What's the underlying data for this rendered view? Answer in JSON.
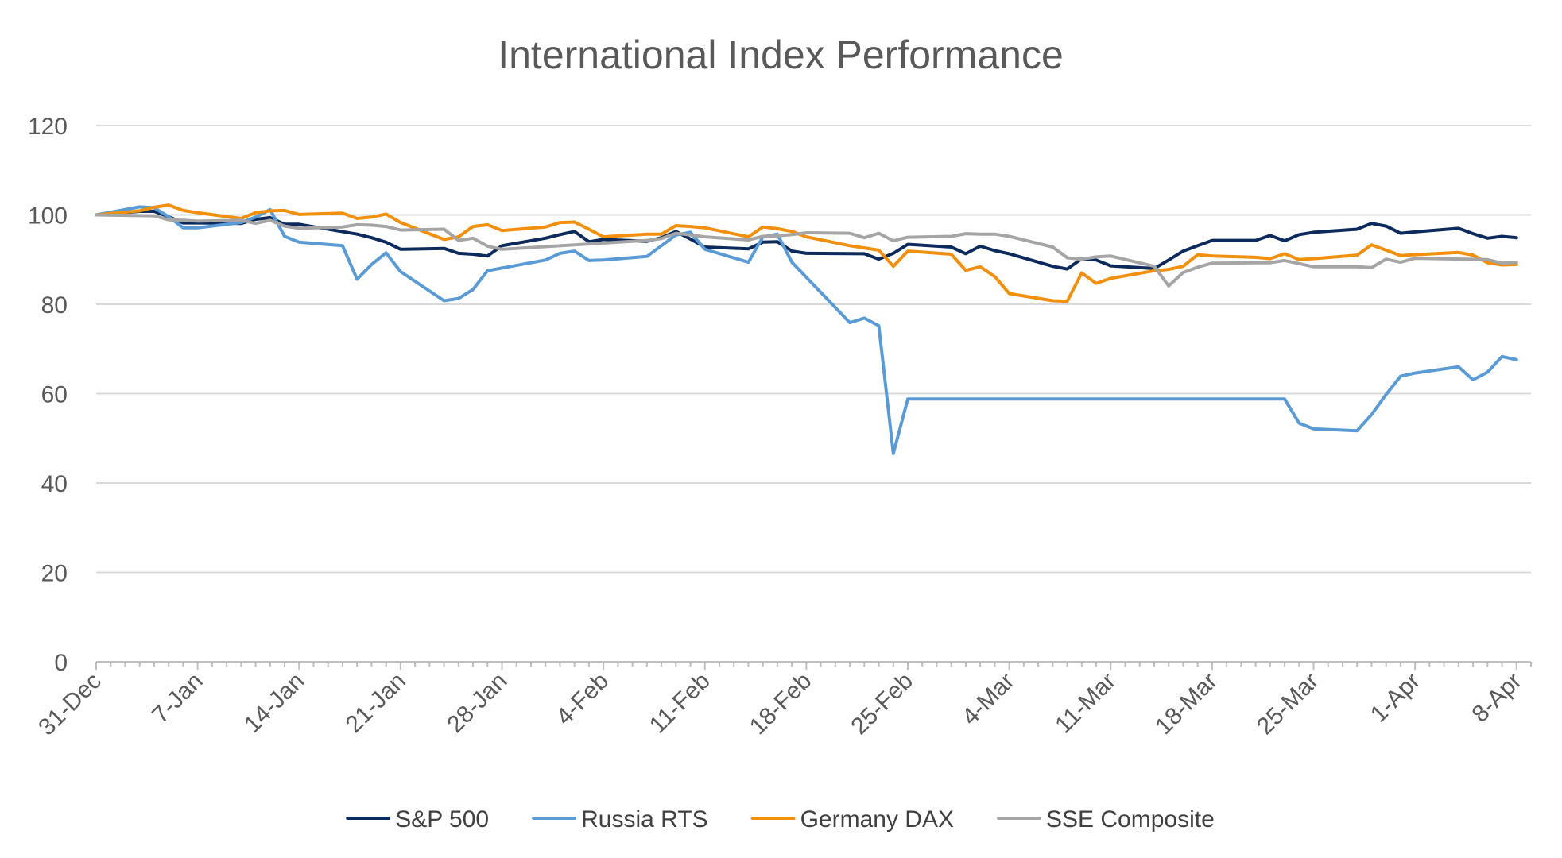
{
  "chart_data": {
    "type": "line",
    "title": "International Index Performance",
    "xlabel": "",
    "ylabel": "",
    "ylim": [
      0,
      120
    ],
    "y_ticks": [
      0,
      20,
      40,
      60,
      80,
      100,
      120
    ],
    "grid": true,
    "legend_position": "bottom",
    "x_range": [
      "31-Dec",
      "9-Apr"
    ],
    "x_tick_labels": [
      "31-Dec",
      "7-Jan",
      "14-Jan",
      "21-Jan",
      "28-Jan",
      "4-Feb",
      "11-Feb",
      "18-Feb",
      "25-Feb",
      "4-Mar",
      "11-Mar",
      "18-Mar",
      "25-Mar",
      "1-Apr",
      "8-Apr"
    ],
    "series": [
      {
        "name": "S&P 500",
        "color": "#0d2a5c",
        "points": [
          [
            "31-Dec",
            100
          ],
          [
            "3-Jan",
            100.8
          ],
          [
            "4-Jan",
            100.8
          ],
          [
            "5-Jan",
            99.6
          ],
          [
            "6-Jan",
            98.2
          ],
          [
            "7-Jan",
            98.2
          ],
          [
            "10-Jan",
            98.1
          ],
          [
            "11-Jan",
            99
          ],
          [
            "12-Jan",
            99.4
          ],
          [
            "13-Jan",
            97.9
          ],
          [
            "14-Jan",
            97.9
          ],
          [
            "18-Jan",
            95.7
          ],
          [
            "19-Jan",
            94.9
          ],
          [
            "20-Jan",
            93.9
          ],
          [
            "21-Jan",
            92.3
          ],
          [
            "24-Jan",
            92.5
          ],
          [
            "25-Jan",
            91.4
          ],
          [
            "26-Jan",
            91.2
          ],
          [
            "27-Jan",
            90.8
          ],
          [
            "28-Jan",
            93.1
          ],
          [
            "31-Jan",
            94.8
          ],
          [
            "1-Feb",
            95.6
          ],
          [
            "2-Feb",
            96.3
          ],
          [
            "3-Feb",
            94
          ],
          [
            "4-Feb",
            94.5
          ],
          [
            "7-Feb",
            94.1
          ],
          [
            "8-Feb",
            94.9
          ],
          [
            "9-Feb",
            96.3
          ],
          [
            "10-Feb",
            94.6
          ],
          [
            "11-Feb",
            92.8
          ],
          [
            "14-Feb",
            92.4
          ],
          [
            "15-Feb",
            93.9
          ],
          [
            "16-Feb",
            94
          ],
          [
            "17-Feb",
            91.9
          ],
          [
            "18-Feb",
            91.4
          ],
          [
            "22-Feb",
            91.3
          ],
          [
            "23-Feb",
            90.1
          ],
          [
            "24-Feb",
            91.4
          ],
          [
            "25-Feb",
            93.4
          ],
          [
            "28-Feb",
            92.8
          ],
          [
            "1-Mar",
            91.3
          ],
          [
            "2-Mar",
            93
          ],
          [
            "3-Mar",
            92
          ],
          [
            "4-Mar",
            91.3
          ],
          [
            "7-Mar",
            88.5
          ],
          [
            "8-Mar",
            87.9
          ],
          [
            "9-Mar",
            90.2
          ],
          [
            "10-Mar",
            89.9
          ],
          [
            "11-Mar",
            88.6
          ],
          [
            "14-Mar",
            88
          ],
          [
            "15-Mar",
            89.9
          ],
          [
            "16-Mar",
            91.9
          ],
          [
            "17-Mar",
            93.1
          ],
          [
            "18-Mar",
            94.3
          ],
          [
            "21-Mar",
            94.3
          ],
          [
            "22-Mar",
            95.4
          ],
          [
            "23-Mar",
            94.2
          ],
          [
            "24-Mar",
            95.6
          ],
          [
            "25-Mar",
            96.1
          ],
          [
            "28-Mar",
            96.8
          ],
          [
            "29-Mar",
            98.1
          ],
          [
            "30-Mar",
            97.5
          ],
          [
            "31-Mar",
            95.9
          ],
          [
            "1-Apr",
            96.2
          ],
          [
            "4-Apr",
            97
          ],
          [
            "5-Apr",
            95.8
          ],
          [
            "6-Apr",
            94.8
          ],
          [
            "7-Apr",
            95.2
          ],
          [
            "8-Apr",
            94.9
          ]
        ]
      },
      {
        "name": "Russia RTS",
        "color": "#5b9bd5",
        "points": [
          [
            "31-Dec",
            100
          ],
          [
            "3-Jan",
            101.8
          ],
          [
            "4-Jan",
            101.6
          ],
          [
            "5-Jan",
            99.6
          ],
          [
            "6-Jan",
            97.1
          ],
          [
            "7-Jan",
            97.1
          ],
          [
            "10-Jan",
            98.3
          ],
          [
            "11-Jan",
            99.5
          ],
          [
            "12-Jan",
            101.2
          ],
          [
            "13-Jan",
            95.2
          ],
          [
            "14-Jan",
            93.9
          ],
          [
            "17-Jan",
            93.1
          ],
          [
            "18-Jan",
            85.6
          ],
          [
            "19-Jan",
            88.9
          ],
          [
            "20-Jan",
            91.5
          ],
          [
            "21-Jan",
            87.3
          ],
          [
            "24-Jan",
            80.8
          ],
          [
            "25-Jan",
            81.3
          ],
          [
            "26-Jan",
            83.3
          ],
          [
            "27-Jan",
            87.5
          ],
          [
            "28-Jan",
            88.1
          ],
          [
            "31-Jan",
            89.9
          ],
          [
            "1-Feb",
            91.4
          ],
          [
            "2-Feb",
            91.9
          ],
          [
            "3-Feb",
            89.8
          ],
          [
            "4-Feb",
            89.9
          ],
          [
            "7-Feb",
            90.7
          ],
          [
            "8-Feb",
            93.1
          ],
          [
            "9-Feb",
            95.5
          ],
          [
            "10-Feb",
            96.1
          ],
          [
            "11-Feb",
            92.3
          ],
          [
            "14-Feb",
            89.4
          ],
          [
            "15-Feb",
            95.1
          ],
          [
            "16-Feb",
            95.7
          ],
          [
            "17-Feb",
            89.4
          ],
          [
            "21-Feb",
            75.9
          ],
          [
            "22-Feb",
            76.9
          ],
          [
            "23-Feb",
            75.2
          ],
          [
            "24-Feb",
            46.6
          ],
          [
            "25-Feb",
            58.8
          ],
          [
            "23-Mar",
            58.8
          ],
          [
            "24-Mar",
            53.4
          ],
          [
            "25-Mar",
            52.1
          ],
          [
            "28-Mar",
            51.7
          ],
          [
            "29-Mar",
            55.3
          ],
          [
            "30-Mar",
            59.8
          ],
          [
            "31-Mar",
            63.9
          ],
          [
            "1-Apr",
            64.6
          ],
          [
            "4-Apr",
            66
          ],
          [
            "5-Apr",
            63.1
          ],
          [
            "6-Apr",
            64.8
          ],
          [
            "7-Apr",
            68.3
          ],
          [
            "8-Apr",
            67.6
          ]
        ]
      },
      {
        "name": "Germany DAX",
        "color": "#f0900e",
        "points": [
          [
            "31-Dec",
            100
          ],
          [
            "3-Jan",
            100.9
          ],
          [
            "4-Jan",
            101.7
          ],
          [
            "5-Jan",
            102.2
          ],
          [
            "6-Jan",
            101
          ],
          [
            "7-Jan",
            100.5
          ],
          [
            "10-Jan",
            99.2
          ],
          [
            "11-Jan",
            100.5
          ],
          [
            "12-Jan",
            100.9
          ],
          [
            "13-Jan",
            101
          ],
          [
            "14-Jan",
            100.1
          ],
          [
            "17-Jan",
            100.4
          ],
          [
            "18-Jan",
            99.2
          ],
          [
            "19-Jan",
            99.5
          ],
          [
            "20-Jan",
            100.2
          ],
          [
            "21-Jan",
            98.3
          ],
          [
            "24-Jan",
            94.5
          ],
          [
            "25-Jan",
            95.1
          ],
          [
            "26-Jan",
            97.4
          ],
          [
            "27-Jan",
            97.8
          ],
          [
            "28-Jan",
            96.5
          ],
          [
            "31-Jan",
            97.3
          ],
          [
            "1-Feb",
            98.3
          ],
          [
            "2-Feb",
            98.4
          ],
          [
            "3-Feb",
            96.8
          ],
          [
            "4-Feb",
            95.1
          ],
          [
            "7-Feb",
            95.7
          ],
          [
            "8-Feb",
            95.7
          ],
          [
            "9-Feb",
            97.6
          ],
          [
            "10-Feb",
            97.4
          ],
          [
            "11-Feb",
            97.1
          ],
          [
            "14-Feb",
            95.1
          ],
          [
            "15-Feb",
            97.3
          ],
          [
            "16-Feb",
            96.9
          ],
          [
            "17-Feb",
            96.3
          ],
          [
            "18-Feb",
            95.1
          ],
          [
            "21-Feb",
            93.1
          ],
          [
            "22-Feb",
            92.6
          ],
          [
            "23-Feb",
            92.1
          ],
          [
            "24-Feb",
            88.5
          ],
          [
            "25-Feb",
            91.9
          ],
          [
            "28-Feb",
            91.2
          ],
          [
            "1-Mar",
            87.6
          ],
          [
            "2-Mar",
            88.4
          ],
          [
            "3-Mar",
            86.2
          ],
          [
            "4-Mar",
            82.4
          ],
          [
            "7-Mar",
            80.8
          ],
          [
            "8-Mar",
            80.7
          ],
          [
            "9-Mar",
            87
          ],
          [
            "10-Mar",
            84.7
          ],
          [
            "11-Mar",
            85.8
          ],
          [
            "14-Mar",
            87.5
          ],
          [
            "15-Mar",
            87.8
          ],
          [
            "16-Mar",
            88.5
          ],
          [
            "17-Mar",
            91.1
          ],
          [
            "18-Mar",
            90.8
          ],
          [
            "21-Mar",
            90.5
          ],
          [
            "22-Mar",
            90.2
          ],
          [
            "23-Mar",
            91.3
          ],
          [
            "24-Mar",
            90
          ],
          [
            "25-Mar",
            90.2
          ],
          [
            "28-Mar",
            91
          ],
          [
            "29-Mar",
            93.3
          ],
          [
            "30-Mar",
            92.1
          ],
          [
            "31-Mar",
            90.9
          ],
          [
            "1-Apr",
            91.1
          ],
          [
            "4-Apr",
            91.6
          ],
          [
            "5-Apr",
            91
          ],
          [
            "6-Apr",
            89.3
          ],
          [
            "7-Apr",
            88.8
          ],
          [
            "8-Apr",
            88.9
          ]
        ]
      },
      {
        "name": "SSE Composite",
        "color": "#a5a5a5",
        "points": [
          [
            "31-Dec",
            100
          ],
          [
            "4-Jan",
            99.8
          ],
          [
            "5-Jan",
            98.9
          ],
          [
            "6-Jan",
            98.8
          ],
          [
            "7-Jan",
            98.6
          ],
          [
            "10-Jan",
            98.8
          ],
          [
            "11-Jan",
            98.1
          ],
          [
            "12-Jan",
            98.8
          ],
          [
            "13-Jan",
            97.5
          ],
          [
            "14-Jan",
            97
          ],
          [
            "17-Jan",
            97.3
          ],
          [
            "18-Jan",
            97.8
          ],
          [
            "19-Jan",
            97.7
          ],
          [
            "20-Jan",
            97.4
          ],
          [
            "21-Jan",
            96.6
          ],
          [
            "24-Jan",
            96.8
          ],
          [
            "25-Jan",
            94.3
          ],
          [
            "26-Jan",
            94.8
          ],
          [
            "27-Jan",
            93
          ],
          [
            "28-Jan",
            92.3
          ],
          [
            "7-Feb",
            94.3
          ],
          [
            "8-Feb",
            94.7
          ],
          [
            "9-Feb",
            95.9
          ],
          [
            "10-Feb",
            95.5
          ],
          [
            "11-Feb",
            95.1
          ],
          [
            "14-Feb",
            94.4
          ],
          [
            "15-Feb",
            95.2
          ],
          [
            "16-Feb",
            95.3
          ],
          [
            "17-Feb",
            95.6
          ],
          [
            "18-Feb",
            96
          ],
          [
            "21-Feb",
            95.9
          ],
          [
            "22-Feb",
            94.9
          ],
          [
            "23-Feb",
            95.9
          ],
          [
            "24-Feb",
            94.2
          ],
          [
            "25-Feb",
            95
          ],
          [
            "28-Feb",
            95.2
          ],
          [
            "1-Mar",
            95.8
          ],
          [
            "2-Mar",
            95.7
          ],
          [
            "3-Mar",
            95.7
          ],
          [
            "4-Mar",
            95.2
          ],
          [
            "7-Mar",
            92.8
          ],
          [
            "8-Mar",
            90.4
          ],
          [
            "9-Mar",
            90.1
          ],
          [
            "10-Mar",
            90.6
          ],
          [
            "11-Mar",
            90.8
          ],
          [
            "14-Mar",
            88.5
          ],
          [
            "15-Mar",
            84.1
          ],
          [
            "16-Mar",
            87.1
          ],
          [
            "17-Mar",
            88.3
          ],
          [
            "18-Mar",
            89.2
          ],
          [
            "21-Mar",
            89.3
          ],
          [
            "22-Mar",
            89.3
          ],
          [
            "23-Mar",
            89.8
          ],
          [
            "24-Mar",
            89.1
          ],
          [
            "25-Mar",
            88.4
          ],
          [
            "28-Mar",
            88.4
          ],
          [
            "29-Mar",
            88.2
          ],
          [
            "30-Mar",
            90.1
          ],
          [
            "31-Mar",
            89.4
          ],
          [
            "1-Apr",
            90.3
          ],
          [
            "6-Apr",
            90
          ],
          [
            "7-Apr",
            89.2
          ],
          [
            "8-Apr",
            89.4
          ]
        ]
      }
    ]
  }
}
